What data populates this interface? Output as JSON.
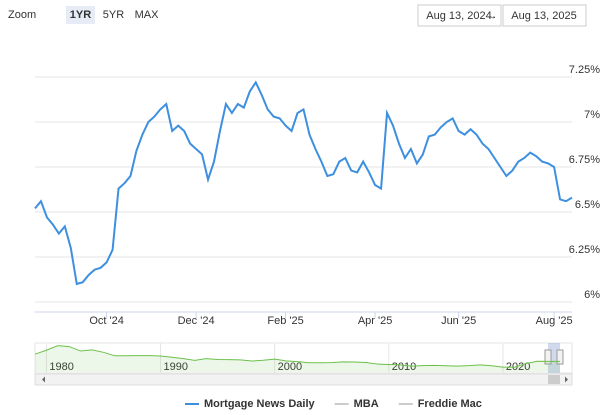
{
  "range_selector": {
    "zoom_label": "Zoom",
    "buttons": [
      "1YR",
      "5YR",
      "MAX"
    ],
    "selected": 0,
    "from": "Aug 13, 2024",
    "separator": "→",
    "to": "Aug 13, 2025"
  },
  "chart_data": [
    {
      "type": "line",
      "categories": [
        null,
        null,
        null,
        null,
        null,
        null,
        null,
        null,
        null,
        null,
        null,
        null,
        "Oct '24",
        null,
        null,
        null,
        null,
        null,
        null,
        null,
        null,
        null,
        null,
        null,
        null,
        null,
        null,
        "Dec '24",
        null,
        null,
        null,
        null,
        null,
        null,
        null,
        null,
        null,
        null,
        null,
        null,
        null,
        null,
        "Feb '25",
        null,
        null,
        null,
        null,
        null,
        null,
        null,
        null,
        null,
        null,
        null,
        null,
        null,
        null,
        "Apr '25",
        null,
        null,
        null,
        null,
        null,
        null,
        null,
        null,
        null,
        null,
        null,
        null,
        null,
        "Jun '25",
        null,
        null,
        null,
        null,
        null,
        null,
        null,
        null,
        null,
        null,
        null,
        null,
        null,
        null,
        null,
        "Aug '25",
        null,
        null,
        null
      ],
      "series": [
        {
          "name": "Mortgage News Daily",
          "color": "#3d8fe0",
          "values": [
            6.52,
            6.56,
            6.47,
            6.43,
            6.38,
            6.42,
            6.3,
            6.1,
            6.11,
            6.15,
            6.18,
            6.19,
            6.22,
            6.29,
            6.63,
            6.66,
            6.7,
            6.84,
            6.93,
            7.0,
            7.03,
            7.07,
            7.1,
            6.95,
            6.98,
            6.95,
            6.88,
            6.85,
            6.82,
            6.68,
            6.78,
            6.95,
            7.1,
            7.05,
            7.1,
            7.08,
            7.17,
            7.22,
            7.15,
            7.07,
            7.03,
            7.02,
            6.98,
            6.95,
            7.05,
            7.07,
            6.93,
            6.85,
            6.78,
            6.7,
            6.71,
            6.78,
            6.8,
            6.73,
            6.72,
            6.78,
            6.72,
            6.65,
            6.63,
            7.05,
            6.98,
            6.88,
            6.8,
            6.85,
            6.77,
            6.82,
            6.92,
            6.93,
            6.97,
            7.0,
            7.02,
            6.95,
            6.93,
            6.96,
            6.93,
            6.88,
            6.85,
            6.8,
            6.75,
            6.7,
            6.73,
            6.78,
            6.8,
            6.83,
            6.81,
            6.78,
            6.77,
            6.75,
            6.57,
            6.56,
            6.58
          ]
        }
      ],
      "ylim": [
        6,
        7.5
      ],
      "yticks": [
        {
          "value": 6,
          "label": "6%"
        },
        {
          "value": 6.25,
          "label": "6.25%"
        },
        {
          "value": 6.5,
          "label": "6.5%"
        },
        {
          "value": 6.75,
          "label": "6.75%"
        },
        {
          "value": 7,
          "label": "7%"
        },
        {
          "value": 7.25,
          "label": "7.25%"
        }
      ],
      "grid": true,
      "legend": [
        {
          "name": "Mortgage News Daily",
          "color": "#3d8fe0",
          "visible": true
        },
        {
          "name": "MBA",
          "color": "#cccccc",
          "visible": false
        },
        {
          "name": "Freddie Mac",
          "color": "#cccccc",
          "visible": false
        }
      ]
    },
    {
      "type": "area",
      "x": [
        1979,
        1980,
        1981,
        1982,
        1983,
        1984,
        1985,
        1986,
        1987,
        1988,
        1989,
        1990,
        1991,
        1992,
        1993,
        1994,
        1995,
        1996,
        1997,
        1998,
        1999,
        2000,
        2001,
        2002,
        2003,
        2004,
        2005,
        2006,
        2007,
        2008,
        2009,
        2010,
        2011,
        2012,
        2013,
        2014,
        2015,
        2016,
        2017,
        2018,
        2019,
        2020,
        2021,
        2022,
        2023,
        2024,
        2025
      ],
      "values": [
        11.2,
        13.7,
        16.6,
        16.0,
        13.2,
        13.9,
        12.4,
        10.2,
        10.2,
        10.3,
        10.3,
        10.1,
        9.3,
        8.4,
        7.3,
        8.4,
        7.9,
        7.8,
        7.6,
        6.9,
        7.4,
        8.1,
        7.0,
        6.5,
        5.8,
        5.8,
        5.9,
        6.4,
        6.3,
        6.0,
        5.0,
        4.7,
        4.5,
        3.7,
        4.0,
        4.2,
        3.9,
        3.7,
        4.0,
        4.5,
        3.9,
        3.1,
        3.0,
        5.3,
        6.8,
        6.7,
        6.7
      ],
      "color": "#6cc04a",
      "xlim": [
        1979,
        2025
      ],
      "xticks": [
        1980,
        1990,
        2000,
        2010,
        2020
      ],
      "ylim": [
        0,
        17
      ]
    }
  ]
}
